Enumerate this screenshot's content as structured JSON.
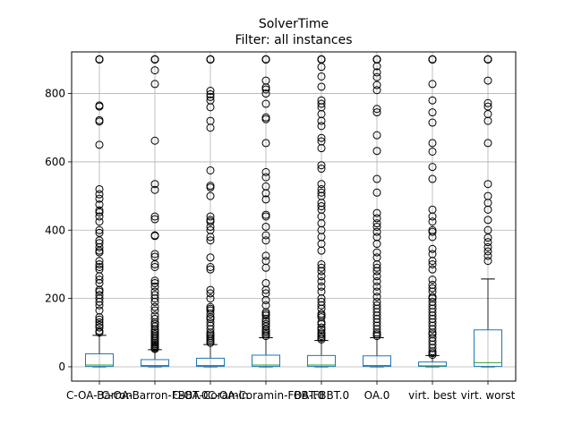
{
  "chart_data": {
    "type": "boxplot",
    "title": "SolverTime",
    "subtitle": "Filter: all instances",
    "xlabel": "",
    "ylabel": "",
    "ylim": [
      -42,
      922
    ],
    "yticks": [
      0,
      200,
      400,
      600,
      800
    ],
    "grid": true,
    "colors": {
      "box": "#1f77b4",
      "median": "#2ca02c",
      "grid": "#b0b0b0"
    },
    "categories": [
      "C-OA-Barron",
      "C-OA-Barron-FBBT.0",
      "C-OA-Coramin",
      "C-OA-Coramin-FBBT.0",
      "OA-FBBT.0",
      "OA.0",
      "virt. best",
      "virt. worst"
    ],
    "series": [
      {
        "name": "C-OA-Barron",
        "q1": 1,
        "median": 5,
        "q3": 38,
        "whisker_low": 0,
        "whisker_high": 92,
        "outliers": [
          900,
          900,
          900,
          900,
          900,
          765,
          762,
          722,
          718,
          650,
          520,
          505,
          492,
          475,
          458,
          452,
          440,
          425,
          400,
          392,
          370,
          362,
          350,
          340,
          335,
          310,
          300,
          292,
          285,
          265,
          255,
          245,
          225,
          220,
          210,
          200,
          190,
          180,
          165,
          145,
          138,
          130,
          122,
          115,
          105,
          100
        ]
      },
      {
        "name": "C-OA-Barron-FBBT.0",
        "q1": 1,
        "median": 4,
        "q3": 21,
        "whisker_low": 0,
        "whisker_high": 50,
        "outliers": [
          900,
          900,
          900,
          900,
          900,
          868,
          828,
          662,
          535,
          518,
          440,
          432,
          385,
          383,
          330,
          322,
          300,
          292,
          252,
          245,
          235,
          220,
          210,
          200,
          190,
          175,
          165,
          150,
          140,
          130,
          125,
          118,
          110,
          105,
          100,
          95,
          90,
          85,
          80,
          75,
          70,
          66,
          62,
          58,
          55,
          52
        ]
      },
      {
        "name": "C-OA-Coramin",
        "q1": 1,
        "median": 4,
        "q3": 25,
        "whisker_low": 0,
        "whisker_high": 65,
        "outliers": [
          900,
          900,
          900,
          900,
          900,
          808,
          798,
          790,
          780,
          760,
          720,
          700,
          575,
          530,
          525,
          500,
          440,
          430,
          425,
          410,
          400,
          380,
          370,
          320,
          292,
          285,
          225,
          215,
          200,
          175,
          170,
          165,
          155,
          145,
          140,
          130,
          120,
          110,
          100,
          95,
          90,
          85,
          80,
          75,
          70
        ]
      },
      {
        "name": "C-OA-Coramin-FBBT.0",
        "q1": 1,
        "median": 5,
        "q3": 34,
        "whisker_low": 0,
        "whisker_high": 85,
        "outliers": [
          900,
          900,
          900,
          900,
          900,
          838,
          818,
          812,
          800,
          770,
          730,
          725,
          655,
          570,
          555,
          528,
          508,
          490,
          445,
          440,
          410,
          385,
          370,
          325,
          310,
          290,
          245,
          225,
          215,
          195,
          180,
          160,
          155,
          150,
          140,
          132,
          125,
          118,
          110,
          105,
          100,
          95,
          90
        ]
      },
      {
        "name": "OA-FBBT.0",
        "q1": 1,
        "median": 5,
        "q3": 33,
        "whisker_low": 0,
        "whisker_high": 77,
        "outliers": [
          900,
          900,
          900,
          900,
          900,
          900,
          878,
          850,
          820,
          780,
          770,
          760,
          740,
          720,
          705,
          670,
          660,
          640,
          590,
          580,
          535,
          520,
          510,
          500,
          480,
          470,
          460,
          440,
          420,
          400,
          380,
          360,
          340,
          300,
          290,
          280,
          265,
          250,
          235,
          220,
          200,
          190,
          180,
          170,
          155,
          150,
          145,
          130,
          125,
          115,
          108,
          100,
          95,
          90,
          85,
          80
        ]
      },
      {
        "name": "OA.0",
        "q1": 1,
        "median": 4,
        "q3": 32,
        "whisker_low": 0,
        "whisker_high": 85,
        "outliers": [
          900,
          900,
          900,
          900,
          900,
          900,
          880,
          862,
          848,
          825,
          810,
          755,
          745,
          678,
          632,
          550,
          510,
          450,
          435,
          420,
          410,
          395,
          380,
          360,
          335,
          320,
          300,
          290,
          280,
          265,
          250,
          235,
          220,
          205,
          190,
          180,
          170,
          160,
          150,
          140,
          130,
          120,
          110,
          100,
          95,
          90
        ]
      },
      {
        "name": "virt. best",
        "q1": 1,
        "median": 3,
        "q3": 14,
        "whisker_low": 0,
        "whisker_high": 33,
        "outliers": [
          900,
          900,
          900,
          900,
          900,
          828,
          780,
          745,
          715,
          655,
          630,
          585,
          550,
          460,
          440,
          425,
          400,
          395,
          380,
          345,
          330,
          310,
          300,
          285,
          255,
          240,
          230,
          220,
          205,
          200,
          190,
          180,
          170,
          160,
          150,
          140,
          130,
          120,
          110,
          100,
          95,
          85,
          75,
          65,
          55,
          45,
          40,
          35
        ]
      },
      {
        "name": "virt. worst",
        "q1": 1,
        "median": 12,
        "q3": 108,
        "whisker_low": 0,
        "whisker_high": 257,
        "outliers": [
          900,
          900,
          900,
          900,
          900,
          838,
          772,
          762,
          740,
          720,
          655,
          535,
          500,
          480,
          460,
          430,
          400,
          378,
          365,
          350,
          338,
          325,
          310
        ]
      }
    ]
  }
}
